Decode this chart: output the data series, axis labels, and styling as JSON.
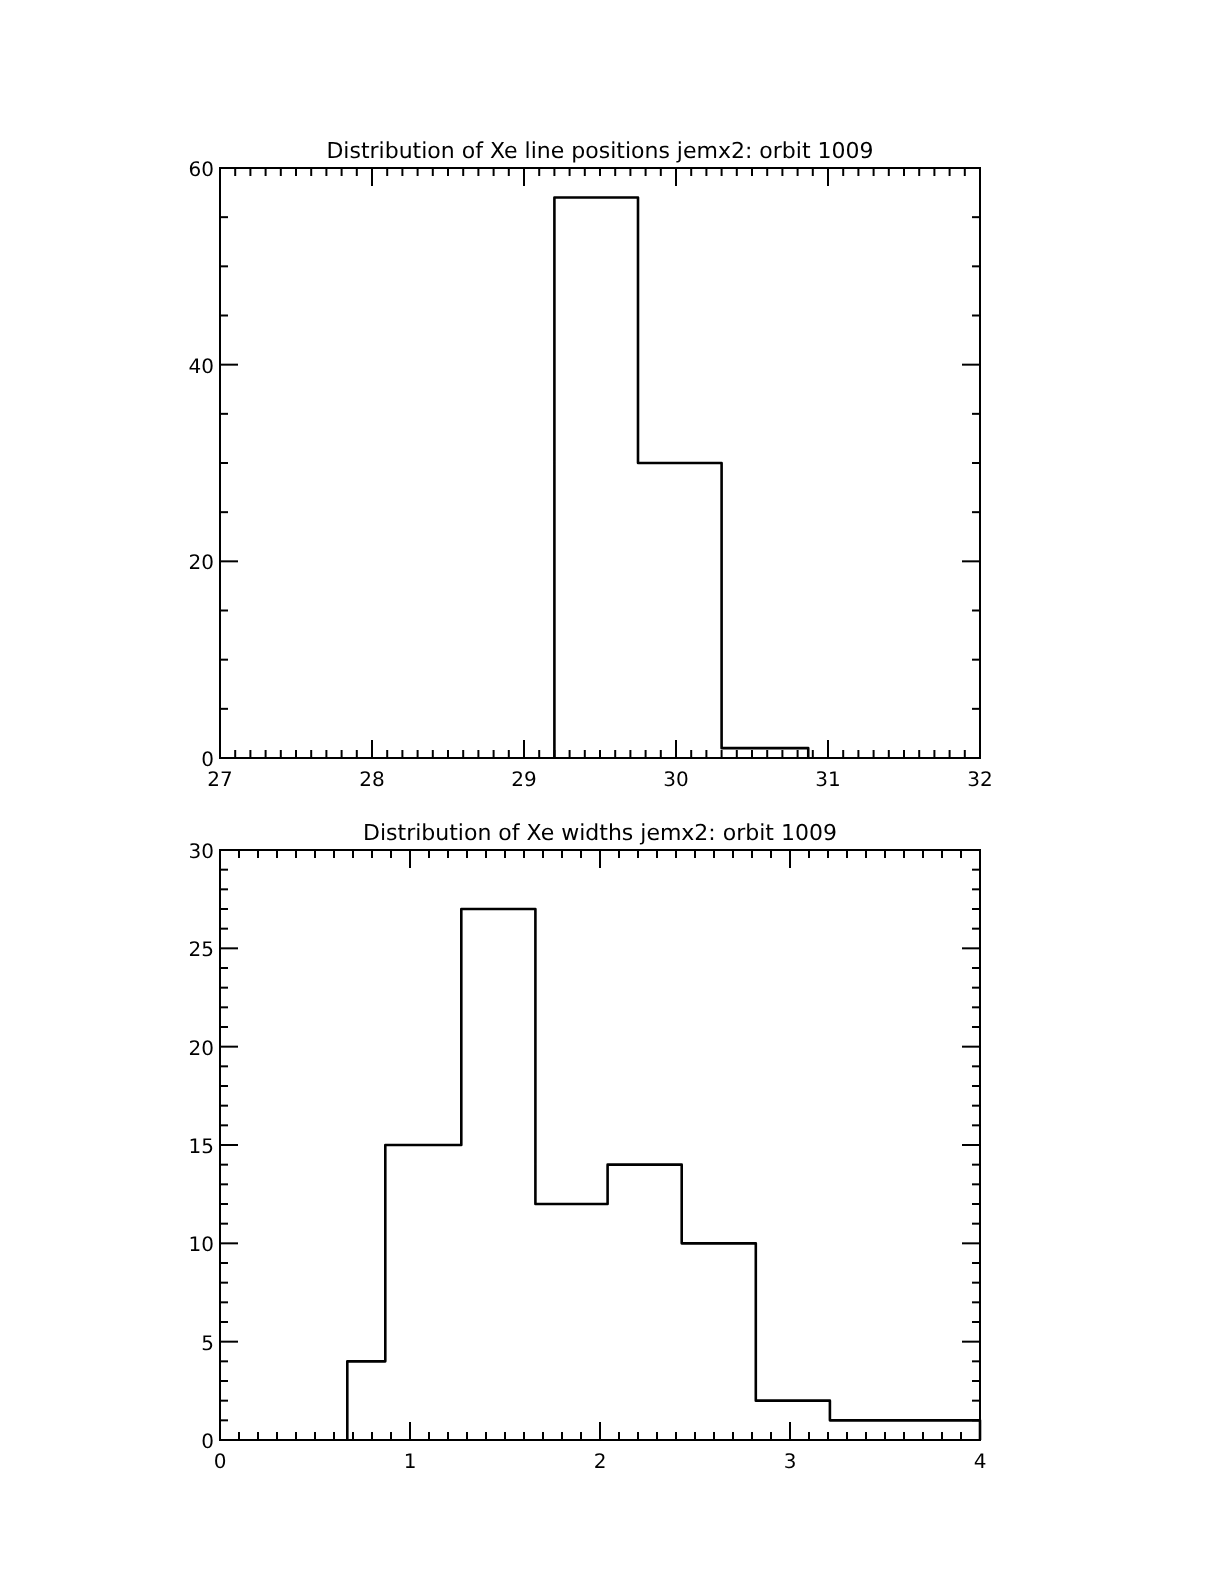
{
  "chart_data": [
    {
      "type": "histogram",
      "title": "Distribution of Xe line positions jemx2: orbit 1009",
      "bins": [
        29.2,
        29.75,
        30.3,
        30.87
      ],
      "values": [
        57,
        30,
        1
      ],
      "color": "#000000",
      "xlim": [
        27,
        32
      ],
      "xticks": [
        27,
        {
          "value": 27.1,
          "label": null
        },
        {
          "value": 27.2,
          "label": null
        },
        {
          "value": 27.3,
          "label": null
        },
        {
          "value": 27.4,
          "label": null
        },
        {
          "value": 27.5,
          "label": null
        },
        {
          "value": 27.6,
          "label": null
        },
        {
          "value": 27.7,
          "label": null
        },
        {
          "value": 27.8,
          "label": null
        },
        {
          "value": 27.9,
          "label": null
        },
        28,
        {
          "value": 28.1,
          "label": null
        },
        {
          "value": 28.2,
          "label": null
        },
        {
          "value": 28.3,
          "label": null
        },
        {
          "value": 28.4,
          "label": null
        },
        {
          "value": 28.5,
          "label": null
        },
        {
          "value": 28.6,
          "label": null
        },
        {
          "value": 28.7,
          "label": null
        },
        {
          "value": 28.8,
          "label": null
        },
        {
          "value": 28.9,
          "label": null
        },
        29,
        {
          "value": 29.1,
          "label": null
        },
        {
          "value": 29.2,
          "label": null
        },
        {
          "value": 29.3,
          "label": null
        },
        {
          "value": 29.4,
          "label": null
        },
        {
          "value": 29.5,
          "label": null
        },
        {
          "value": 29.6,
          "label": null
        },
        {
          "value": 29.7,
          "label": null
        },
        {
          "value": 29.8,
          "label": null
        },
        {
          "value": 29.9,
          "label": null
        },
        30,
        {
          "value": 30.1,
          "label": null
        },
        {
          "value": 30.2,
          "label": null
        },
        {
          "value": 30.3,
          "label": null
        },
        {
          "value": 30.4,
          "label": null
        },
        {
          "value": 30.5,
          "label": null
        },
        {
          "value": 30.6,
          "label": null
        },
        {
          "value": 30.7,
          "label": null
        },
        {
          "value": 30.8,
          "label": null
        },
        {
          "value": 30.9,
          "label": null
        },
        31,
        {
          "value": 31.1,
          "label": null
        },
        {
          "value": 31.2,
          "label": null
        },
        {
          "value": 31.3,
          "label": null
        },
        {
          "value": 31.4,
          "label": null
        },
        {
          "value": 31.5,
          "label": null
        },
        {
          "value": 31.6,
          "label": null
        },
        {
          "value": 31.7,
          "label": null
        },
        {
          "value": 31.8,
          "label": null
        },
        {
          "value": 31.9,
          "label": null
        },
        32
      ],
      "ylim": [
        0,
        60
      ],
      "yticks": [
        0,
        {
          "value": 5,
          "label": null
        },
        {
          "value": 10,
          "label": null
        },
        {
          "value": 15,
          "label": null
        },
        20,
        {
          "value": 25,
          "label": null
        },
        {
          "value": 30,
          "label": null
        },
        {
          "value": 35,
          "label": null
        },
        40,
        {
          "value": 45,
          "label": null
        },
        {
          "value": 50,
          "label": null
        },
        {
          "value": 55,
          "label": null
        },
        60
      ],
      "grid": false
    },
    {
      "type": "histogram",
      "title": "Distribution of Xe widths jemx2: orbit 1009",
      "bins": [
        0.67,
        0.87,
        1.27,
        1.66,
        2.04,
        2.43,
        2.82,
        3.21,
        4.0
      ],
      "values": [
        4,
        15,
        27,
        12,
        14,
        10,
        2,
        1
      ],
      "color": "#000000",
      "xlim": [
        0,
        4
      ],
      "xticks": [
        0,
        {
          "value": 0.1,
          "label": null
        },
        {
          "value": 0.2,
          "label": null
        },
        {
          "value": 0.3,
          "label": null
        },
        {
          "value": 0.4,
          "label": null
        },
        {
          "value": 0.5,
          "label": null
        },
        {
          "value": 0.6,
          "label": null
        },
        {
          "value": 0.7,
          "label": null
        },
        {
          "value": 0.8,
          "label": null
        },
        {
          "value": 0.9,
          "label": null
        },
        1,
        {
          "value": 1.1,
          "label": null
        },
        {
          "value": 1.2,
          "label": null
        },
        {
          "value": 1.3,
          "label": null
        },
        {
          "value": 1.4,
          "label": null
        },
        {
          "value": 1.5,
          "label": null
        },
        {
          "value": 1.6,
          "label": null
        },
        {
          "value": 1.7,
          "label": null
        },
        {
          "value": 1.8,
          "label": null
        },
        {
          "value": 1.9,
          "label": null
        },
        2,
        {
          "value": 2.1,
          "label": null
        },
        {
          "value": 2.2,
          "label": null
        },
        {
          "value": 2.3,
          "label": null
        },
        {
          "value": 2.4,
          "label": null
        },
        {
          "value": 2.5,
          "label": null
        },
        {
          "value": 2.6,
          "label": null
        },
        {
          "value": 2.7,
          "label": null
        },
        {
          "value": 2.8,
          "label": null
        },
        {
          "value": 2.9,
          "label": null
        },
        3,
        {
          "value": 3.1,
          "label": null
        },
        {
          "value": 3.2,
          "label": null
        },
        {
          "value": 3.3,
          "label": null
        },
        {
          "value": 3.4,
          "label": null
        },
        {
          "value": 3.5,
          "label": null
        },
        {
          "value": 3.6,
          "label": null
        },
        {
          "value": 3.7,
          "label": null
        },
        {
          "value": 3.8,
          "label": null
        },
        {
          "value": 3.9,
          "label": null
        },
        4
      ],
      "ylim": [
        0,
        30
      ],
      "yticks": [
        0,
        {
          "value": 1,
          "label": null
        },
        {
          "value": 2,
          "label": null
        },
        {
          "value": 3,
          "label": null
        },
        {
          "value": 4,
          "label": null
        },
        5,
        {
          "value": 6,
          "label": null
        },
        {
          "value": 7,
          "label": null
        },
        {
          "value": 8,
          "label": null
        },
        {
          "value": 9,
          "label": null
        },
        10,
        {
          "value": 11,
          "label": null
        },
        {
          "value": 12,
          "label": null
        },
        {
          "value": 13,
          "label": null
        },
        {
          "value": 14,
          "label": null
        },
        15,
        {
          "value": 16,
          "label": null
        },
        {
          "value": 17,
          "label": null
        },
        {
          "value": 18,
          "label": null
        },
        {
          "value": 19,
          "label": null
        },
        20,
        {
          "value": 21,
          "label": null
        },
        {
          "value": 22,
          "label": null
        },
        {
          "value": 23,
          "label": null
        },
        {
          "value": 24,
          "label": null
        },
        25,
        {
          "value": 26,
          "label": null
        },
        {
          "value": 27,
          "label": null
        },
        {
          "value": 28,
          "label": null
        },
        {
          "value": 29,
          "label": null
        },
        30
      ],
      "grid": false
    }
  ]
}
